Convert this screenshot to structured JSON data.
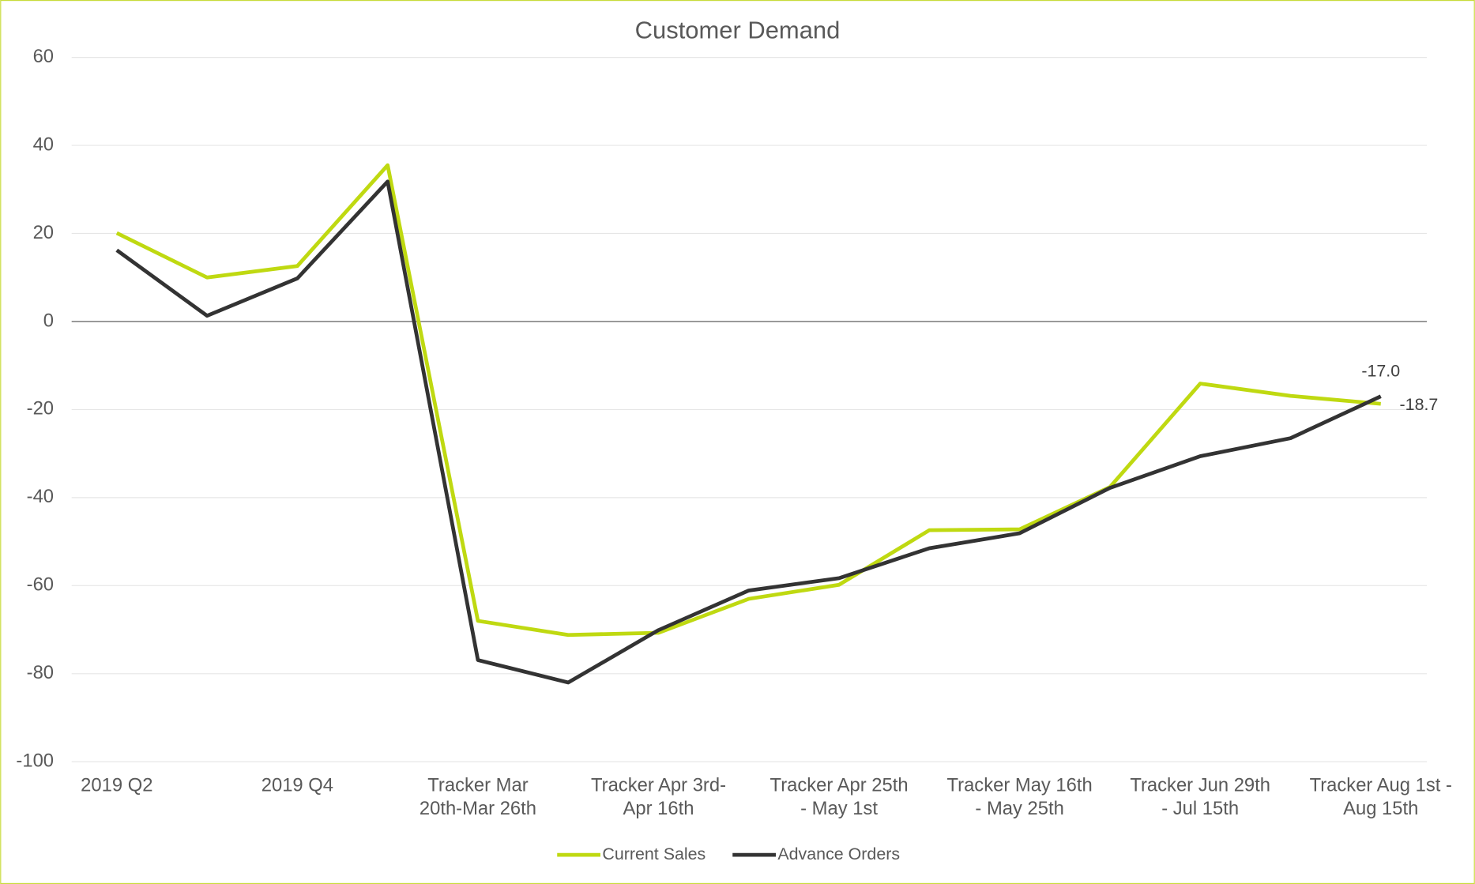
{
  "chart_data": {
    "type": "line",
    "title": "Customer Demand",
    "categories": [
      [
        "2019 Q2"
      ],
      null,
      [
        "2019 Q4"
      ],
      null,
      [
        "Tracker Mar",
        "20th-Mar 26th"
      ],
      null,
      [
        "Tracker Apr 3rd-",
        "Apr 16th"
      ],
      null,
      [
        "Tracker Apr 25th",
        "- May 1st"
      ],
      null,
      [
        "Tracker May 16th",
        "- May 25th"
      ],
      null,
      [
        "Tracker Jun 29th",
        "- Jul 15th"
      ],
      null,
      [
        "Tracker Aug 1st -",
        "Aug 15th"
      ]
    ],
    "series": [
      {
        "name": "Current Sales",
        "color": "#bfd911",
        "values": [
          20.1,
          10.0,
          12.6,
          35.5,
          -68.0,
          -71.2,
          -70.7,
          -63.0,
          -59.8,
          -47.4,
          -47.2,
          -37.6,
          -14.1,
          -16.9,
          -18.7
        ],
        "value_labels": [
          null,
          null,
          null,
          null,
          null,
          null,
          null,
          null,
          null,
          null,
          null,
          null,
          null,
          null,
          "-18.7"
        ]
      },
      {
        "name": "Advance Orders",
        "color": "#333333",
        "values": [
          16.2,
          1.3,
          9.8,
          31.8,
          -76.9,
          -82.0,
          -70.1,
          -61.1,
          -58.3,
          -51.5,
          -48.1,
          -37.8,
          -30.6,
          -26.5,
          -17
        ],
        "value_labels": [
          null,
          null,
          null,
          null,
          null,
          null,
          null,
          null,
          null,
          null,
          null,
          null,
          null,
          null,
          "-17.0"
        ]
      }
    ],
    "ylim": [
      -100,
      60
    ],
    "yticks": [
      -100,
      -80,
      -60,
      -40,
      -20,
      0,
      20,
      40,
      60
    ],
    "grid": true,
    "legend": "bottom"
  }
}
